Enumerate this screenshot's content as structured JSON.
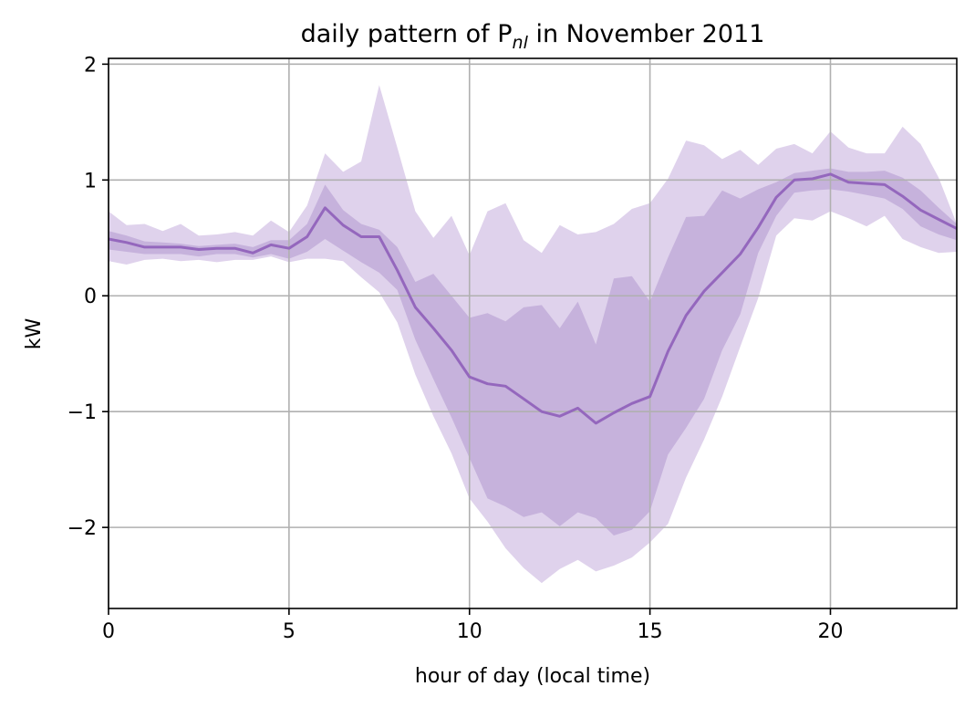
{
  "chart_data": {
    "type": "area",
    "title": "daily pattern of P",
    "title_subscript": "nl",
    "title_suffix": " in November 2011",
    "xlabel": "hour of day (local time)",
    "ylabel": "kW",
    "xlim": [
      0,
      23.5
    ],
    "ylim": [
      -2.7,
      2.05
    ],
    "xticks": [
      0,
      5,
      10,
      15,
      20
    ],
    "xtick_labels": [
      "0",
      "5",
      "10",
      "15",
      "20"
    ],
    "yticks": [
      -2,
      -1,
      0,
      1,
      2
    ],
    "ytick_labels": [
      "−2",
      "−1",
      "0",
      "1",
      "2"
    ],
    "grid": true,
    "colors": {
      "line": "#9467bd",
      "outer_band": "#dfd2ec",
      "inner_band": "#c6b2dc"
    },
    "x": [
      0,
      0.5,
      1,
      1.5,
      2,
      2.5,
      3,
      3.5,
      4,
      4.5,
      5,
      5.5,
      6,
      6.5,
      7,
      7.5,
      8,
      8.5,
      9,
      9.5,
      10,
      10.5,
      11,
      11.5,
      12,
      12.5,
      13,
      13.5,
      14,
      14.5,
      15,
      15.5,
      16,
      16.5,
      17,
      17.5,
      18,
      18.5,
      19,
      19.5,
      20,
      20.5,
      21,
      21.5,
      22,
      22.5,
      23,
      23.5
    ],
    "series": [
      {
        "role": "median",
        "values": [
          0.49,
          0.46,
          0.42,
          0.42,
          0.42,
          0.4,
          0.41,
          0.41,
          0.37,
          0.44,
          0.41,
          0.51,
          0.76,
          0.61,
          0.51,
          0.51,
          0.22,
          -0.1,
          -0.28,
          -0.47,
          -0.7,
          -0.76,
          -0.78,
          -0.89,
          -1.0,
          -1.04,
          -0.97,
          -1.1,
          -1.01,
          -0.93,
          -0.87,
          -0.48,
          -0.17,
          0.04,
          0.2,
          0.36,
          0.59,
          0.85,
          1.0,
          1.01,
          1.05,
          0.98,
          0.97,
          0.96,
          0.86,
          0.74,
          0.66,
          0.58
        ]
      },
      {
        "role": "inner-band-upper",
        "values": [
          0.56,
          0.52,
          0.47,
          0.46,
          0.45,
          0.43,
          0.44,
          0.45,
          0.42,
          0.48,
          0.48,
          0.62,
          0.96,
          0.74,
          0.62,
          0.57,
          0.42,
          0.12,
          0.19,
          0.0,
          -0.19,
          -0.15,
          -0.22,
          -0.1,
          -0.08,
          -0.28,
          -0.05,
          -0.42,
          0.15,
          0.17,
          -0.05,
          0.33,
          0.68,
          0.69,
          0.91,
          0.84,
          0.92,
          0.98,
          1.06,
          1.08,
          1.1,
          1.07,
          1.07,
          1.08,
          1.02,
          0.91,
          0.76,
          0.62
        ]
      },
      {
        "role": "inner-band-lower",
        "values": [
          0.4,
          0.38,
          0.36,
          0.36,
          0.36,
          0.34,
          0.36,
          0.36,
          0.33,
          0.36,
          0.32,
          0.38,
          0.49,
          0.39,
          0.29,
          0.2,
          0.05,
          -0.38,
          -0.72,
          -1.05,
          -1.4,
          -1.75,
          -1.82,
          -1.91,
          -1.87,
          -1.99,
          -1.87,
          -1.92,
          -2.07,
          -2.02,
          -1.86,
          -1.37,
          -1.14,
          -0.89,
          -0.47,
          -0.16,
          0.37,
          0.69,
          0.89,
          0.91,
          0.92,
          0.9,
          0.87,
          0.84,
          0.75,
          0.6,
          0.53,
          0.48
        ]
      },
      {
        "role": "outer-band-upper",
        "values": [
          0.73,
          0.61,
          0.62,
          0.56,
          0.62,
          0.52,
          0.53,
          0.55,
          0.52,
          0.65,
          0.55,
          0.78,
          1.23,
          1.07,
          1.16,
          1.82,
          1.28,
          0.73,
          0.5,
          0.69,
          0.35,
          0.73,
          0.8,
          0.48,
          0.37,
          0.61,
          0.53,
          0.55,
          0.62,
          0.75,
          0.8,
          1.01,
          1.34,
          1.3,
          1.18,
          1.26,
          1.13,
          1.27,
          1.31,
          1.23,
          1.42,
          1.28,
          1.23,
          1.23,
          1.46,
          1.31,
          1.02,
          0.62
        ]
      },
      {
        "role": "outer-band-lower",
        "values": [
          0.3,
          0.27,
          0.31,
          0.32,
          0.3,
          0.31,
          0.29,
          0.31,
          0.31,
          0.34,
          0.29,
          0.32,
          0.32,
          0.3,
          0.16,
          0.03,
          -0.23,
          -0.68,
          -1.04,
          -1.36,
          -1.75,
          -1.95,
          -2.18,
          -2.35,
          -2.48,
          -2.36,
          -2.28,
          -2.38,
          -2.33,
          -2.26,
          -2.13,
          -1.97,
          -1.57,
          -1.24,
          -0.87,
          -0.44,
          -0.02,
          0.52,
          0.67,
          0.65,
          0.73,
          0.67,
          0.6,
          0.69,
          0.49,
          0.42,
          0.37,
          0.38
        ]
      }
    ]
  }
}
